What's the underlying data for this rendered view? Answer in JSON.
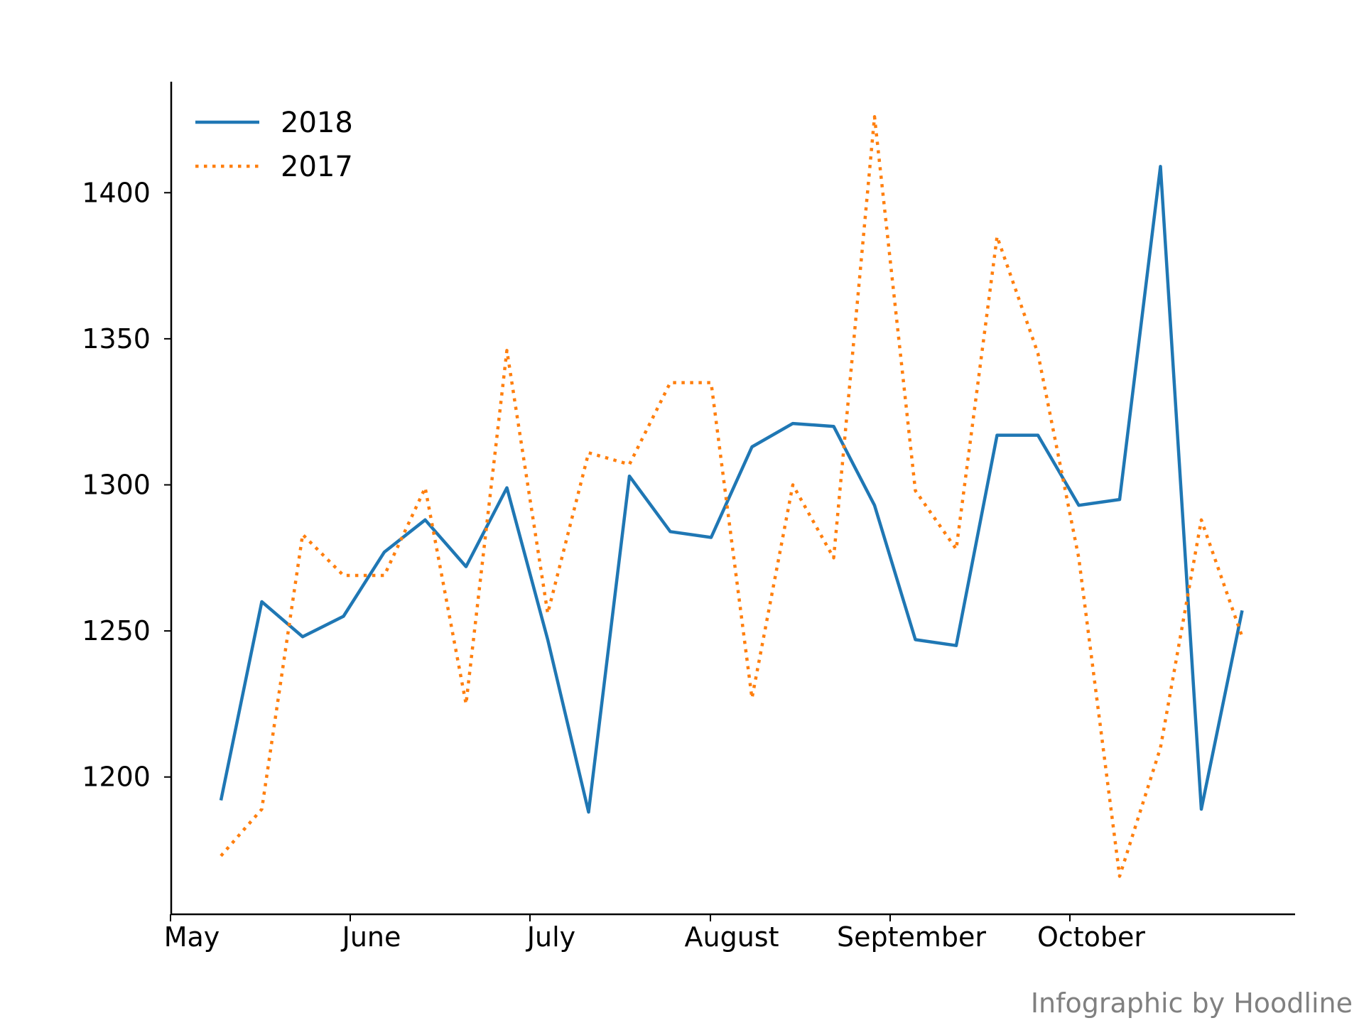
{
  "chart_data": {
    "type": "line",
    "x": [
      "May 5",
      "May 12",
      "May 19",
      "May 26",
      "Jun 2",
      "Jun 9",
      "Jun 16",
      "Jun 23",
      "Jun 30",
      "Jul 7",
      "Jul 14",
      "Jul 21",
      "Jul 28",
      "Aug 4",
      "Aug 11",
      "Aug 18",
      "Aug 25",
      "Sep 1",
      "Sep 8",
      "Sep 15",
      "Sep 22",
      "Sep 29",
      "Oct 6",
      "Oct 13",
      "Oct 20",
      "Oct 27",
      "Nov 3"
    ],
    "series": [
      {
        "name": "2018",
        "color": "#1f77b4",
        "style": "solid",
        "values": [
          1192,
          1260,
          1248,
          1255,
          1277,
          1288,
          1272,
          1299,
          1247,
          1188,
          1303,
          1284,
          1282,
          1313,
          1321,
          1320,
          1293,
          1247,
          1245,
          1317,
          1317,
          1293,
          1295,
          1409,
          1189,
          1257,
          null
        ]
      },
      {
        "name": "2017",
        "color": "#ff7f0e",
        "style": "dotted",
        "values": [
          1173,
          1189,
          1283,
          1269,
          1269,
          1299,
          1225,
          1346,
          1256,
          1311,
          1307,
          1335,
          1335,
          1227,
          1300,
          1275,
          1426,
          1298,
          1278,
          1385,
          1345,
          1275,
          1166,
          1210,
          1288,
          1248,
          null
        ]
      }
    ],
    "xticks": [
      "May",
      "June",
      "July",
      "August",
      "September",
      "October"
    ],
    "yticks": [
      1200,
      1250,
      1300,
      1350,
      1400
    ],
    "ylim": [
      1153,
      1438
    ],
    "legend": "top-left",
    "grid": false
  },
  "credit": "Infographic by Hoodline"
}
